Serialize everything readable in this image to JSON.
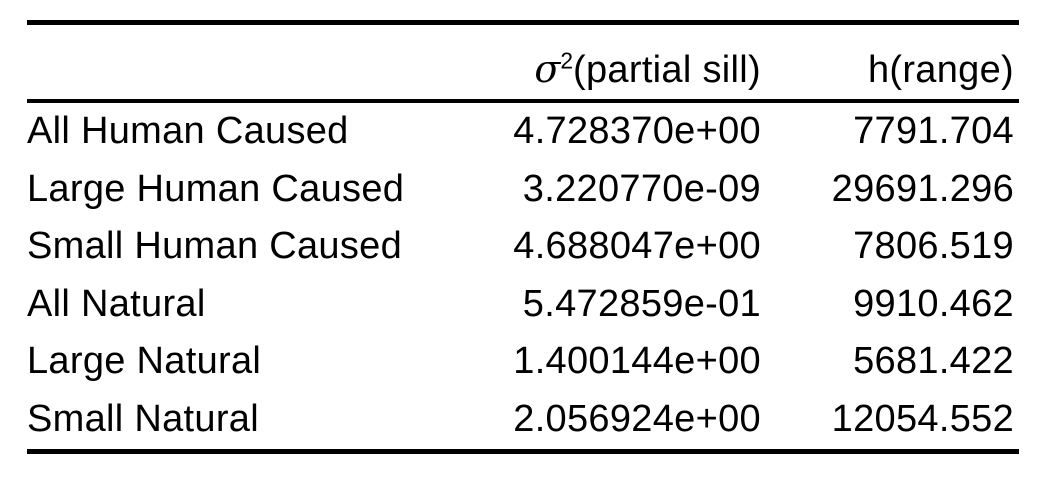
{
  "table": {
    "header": {
      "col1": "",
      "col2_symbol": "σ",
      "col2_sup": "2",
      "col2_rest": "(partial sill)",
      "col3": "h(range)"
    },
    "rows": [
      {
        "label": "All Human Caused",
        "partial_sill": "4.728370e+00",
        "range": "7791.704"
      },
      {
        "label": "Large Human Caused",
        "partial_sill": "3.220770e-09",
        "range": "29691.296"
      },
      {
        "label": "Small Human Caused",
        "partial_sill": "4.688047e+00",
        "range": "7806.519"
      },
      {
        "label": "All Natural",
        "partial_sill": "5.472859e-01",
        "range": "9910.462"
      },
      {
        "label": "Large Natural",
        "partial_sill": "1.400144e+00",
        "range": "5681.422"
      },
      {
        "label": "Small Natural",
        "partial_sill": "2.056924e+00",
        "range": "12054.552"
      }
    ]
  },
  "colors": {
    "text": "#000000",
    "background": "#ffffff",
    "rule": "#000000"
  },
  "chart_data": {
    "type": "table",
    "title": "",
    "columns": [
      "",
      "σ²(partial sill)",
      "h(range)"
    ],
    "rows": [
      [
        "All Human Caused",
        "4.728370e+00",
        "7791.704"
      ],
      [
        "Large Human Caused",
        "3.220770e-09",
        "29691.296"
      ],
      [
        "Small Human Caused",
        "4.688047e+00",
        "7806.519"
      ],
      [
        "All Natural",
        "5.472859e-01",
        "9910.462"
      ],
      [
        "Large Natural",
        "1.400144e+00",
        "5681.422"
      ],
      [
        "Small Natural",
        "2.056924e+00",
        "12054.552"
      ]
    ]
  }
}
